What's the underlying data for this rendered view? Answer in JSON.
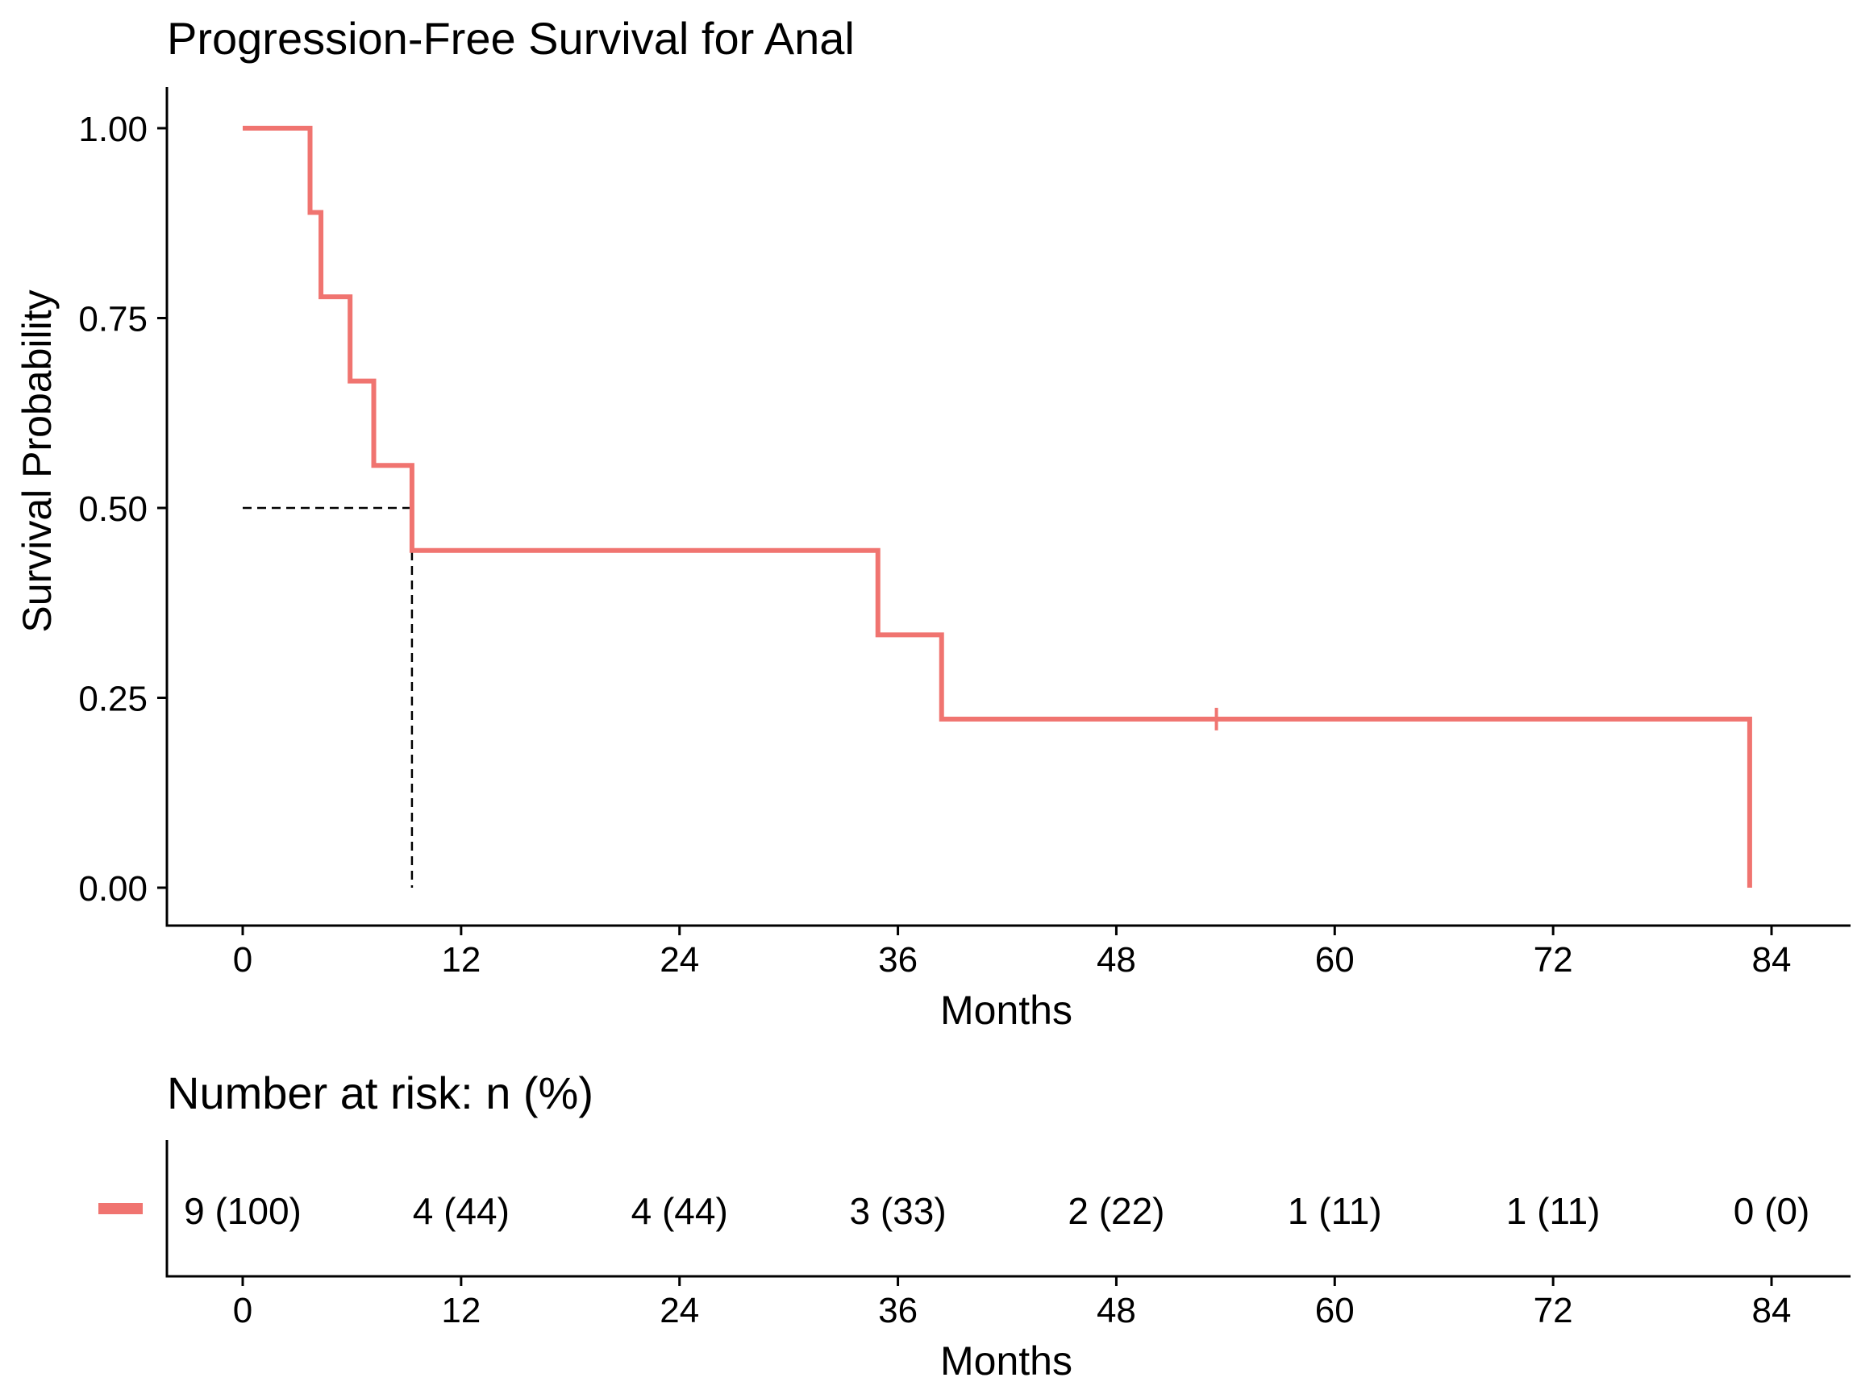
{
  "chart_data": {
    "type": "line",
    "title": "Progression-Free Survival for Anal",
    "xlabel": "Months",
    "ylabel": "Survival Probability",
    "xlim": [
      0,
      84
    ],
    "ylim": [
      0,
      1
    ],
    "x_ticks": [
      0,
      12,
      24,
      36,
      48,
      60,
      72,
      84
    ],
    "x_tick_labels": [
      "0",
      "12",
      "24",
      "36",
      "48",
      "60",
      "72",
      "84"
    ],
    "y_ticks": [
      0,
      0.25,
      0.5,
      0.75,
      1
    ],
    "y_tick_labels": [
      "0.00",
      "0.25",
      "0.50",
      "0.75",
      "1.00"
    ],
    "grid": false,
    "series": [
      {
        "name": "Anal",
        "color": "#F07470",
        "steps": [
          [
            0,
            1.0
          ],
          [
            3.7,
            0.889
          ],
          [
            4.3,
            0.778
          ],
          [
            5.9,
            0.667
          ],
          [
            7.2,
            0.556
          ],
          [
            9.3,
            0.444
          ],
          [
            34.9,
            0.333
          ],
          [
            38.4,
            0.222
          ],
          [
            82.8,
            0.0
          ]
        ],
        "censored": [
          [
            53.5,
            0.222
          ]
        ]
      }
    ],
    "median_line": {
      "x": 9.3,
      "y": 0.5
    },
    "risk_table": {
      "title": "Number at risk: n (%)",
      "xlabel": "Months",
      "times": [
        0,
        12,
        24,
        36,
        48,
        60,
        72,
        84
      ],
      "values": [
        "9 (100)",
        "4 (44)",
        "4 (44)",
        "3 (33)",
        "2 (22)",
        "1 (11)",
        "1 (11)",
        "0 (0)"
      ]
    }
  }
}
